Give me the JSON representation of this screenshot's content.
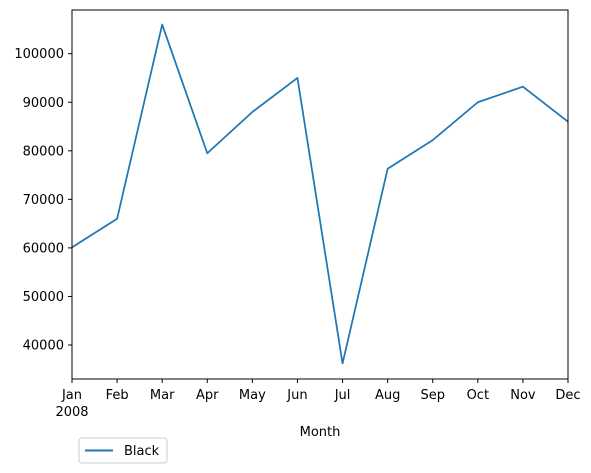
{
  "chart_data": {
    "type": "line",
    "title": "",
    "xlabel": "Month",
    "ylabel": "",
    "categories": [
      "Jan",
      "Feb",
      "Mar",
      "Apr",
      "May",
      "Jun",
      "Jul",
      "Aug",
      "Sep",
      "Oct",
      "Nov",
      "Dec"
    ],
    "year_label": "2008",
    "series": [
      {
        "name": "Black",
        "color": "#1f77b4",
        "values": [
          60100,
          66000,
          106000,
          79500,
          88000,
          95000,
          36200,
          76300,
          82200,
          90000,
          93200,
          86000
        ]
      }
    ],
    "yticks": [
      40000,
      50000,
      60000,
      70000,
      80000,
      90000,
      100000
    ],
    "ylim": [
      33000,
      109000
    ],
    "grid": false,
    "legend_position": "lower-left, below plot"
  }
}
